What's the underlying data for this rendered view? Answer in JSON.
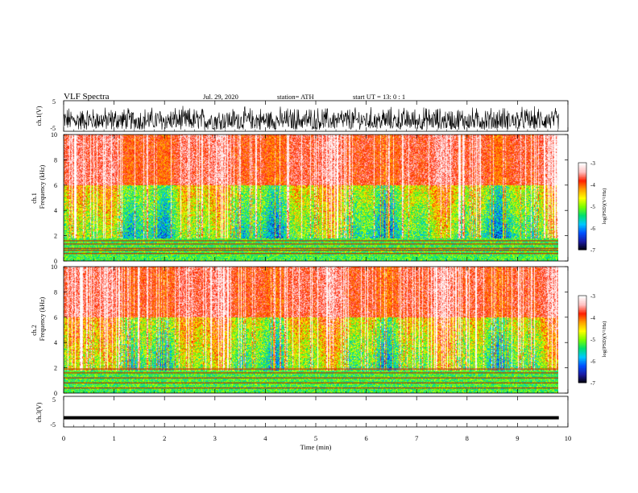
{
  "header": {
    "title": "VLF  Spectra",
    "date": "Jul.  29, 2020",
    "station": "station= ATH",
    "start": "start  UT  =    13: 0   : 1"
  },
  "chart_data": [
    {
      "type": "line",
      "name": "ch1-waveform",
      "ylabel": "ch.1(V)",
      "ylim": [
        -5,
        5
      ],
      "yticks": [
        "5",
        "-5"
      ],
      "xlim": [
        0,
        9.82
      ],
      "amplitude_range": [
        -4.5,
        3.5
      ],
      "color": "#000000"
    },
    {
      "type": "heatmap",
      "name": "ch1-spectrogram",
      "ylabel": [
        "ch.1",
        "Frequency  (kHz)"
      ],
      "ylim": [
        0,
        10
      ],
      "yticks": [
        "0",
        "2",
        "4",
        "6",
        "8",
        "10"
      ],
      "xlim": [
        0,
        9.82
      ],
      "colorbar": {
        "label": "log(PSD)(V²/Hz)",
        "range": [
          -7,
          -3
        ],
        "ticks": [
          "-3",
          "-4",
          "-5",
          "-6",
          "-7"
        ]
      },
      "horizontal_lines_khz": [
        0.6,
        0.85,
        1.0,
        1.35,
        1.6
      ]
    },
    {
      "type": "heatmap",
      "name": "ch2-spectrogram",
      "ylabel": [
        "ch.2",
        "Frequency  (kHz)"
      ],
      "ylim": [
        0,
        10
      ],
      "yticks": [
        "0",
        "2",
        "4",
        "6",
        "8",
        "10"
      ],
      "xlim": [
        0,
        9.82
      ],
      "colorbar": {
        "label": "log(PSD)(V²/Hz)",
        "range": [
          -7,
          -3
        ],
        "ticks": [
          "-3",
          "-4",
          "-5",
          "-6",
          "-7"
        ]
      },
      "horizontal_lines_khz": [
        0.4,
        0.8,
        1.2,
        1.6,
        1.9
      ]
    },
    {
      "type": "line",
      "name": "ch3-waveform",
      "ylabel": "ch.3(V)",
      "ylim": [
        -5,
        5
      ],
      "yticks": [
        "5",
        "-5"
      ],
      "xlim": [
        0,
        9.82
      ],
      "constant_value": -2,
      "color": "#000000"
    }
  ],
  "xaxis": {
    "label": "Time  (min)",
    "ticks": [
      "0",
      "1",
      "2",
      "3",
      "4",
      "5",
      "6",
      "7",
      "8",
      "9",
      "10"
    ],
    "range": [
      0,
      10
    ]
  },
  "colors": {
    "palette": [
      "#000000",
      "#1a1aa0",
      "#0050ff",
      "#00c8ff",
      "#00e070",
      "#7aff00",
      "#ffff00",
      "#ffa000",
      "#ff2000",
      "#ffc0c0",
      "#ffffff"
    ]
  }
}
